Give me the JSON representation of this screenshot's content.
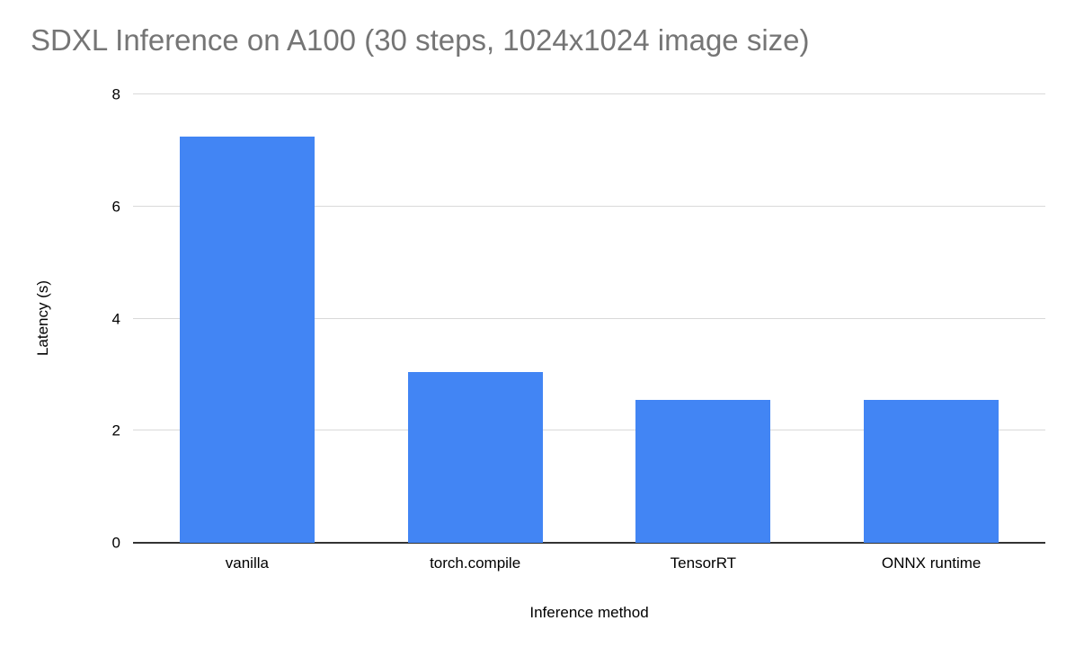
{
  "chart_data": {
    "type": "bar",
    "title": "SDXL Inference on A100 (30 steps, 1024x1024 image size)",
    "categories": [
      "vanilla",
      "torch.compile",
      "TensorRT",
      "ONNX runtime"
    ],
    "values": [
      7.25,
      3.05,
      2.55,
      2.55
    ],
    "xlabel": "Inference method",
    "ylabel": "Latency (s)",
    "ylim": [
      0,
      8
    ],
    "yticks": [
      0,
      2,
      4,
      6,
      8
    ],
    "grid": true,
    "legend": "none"
  },
  "style": {
    "background": "#ffffff",
    "bar_color": "#4285f4",
    "title_color": "#757575",
    "grid_color": "#d9d9d9",
    "baseline_color": "#333333",
    "tick_label_color": "#000000",
    "axis_title_color": "#000000"
  }
}
